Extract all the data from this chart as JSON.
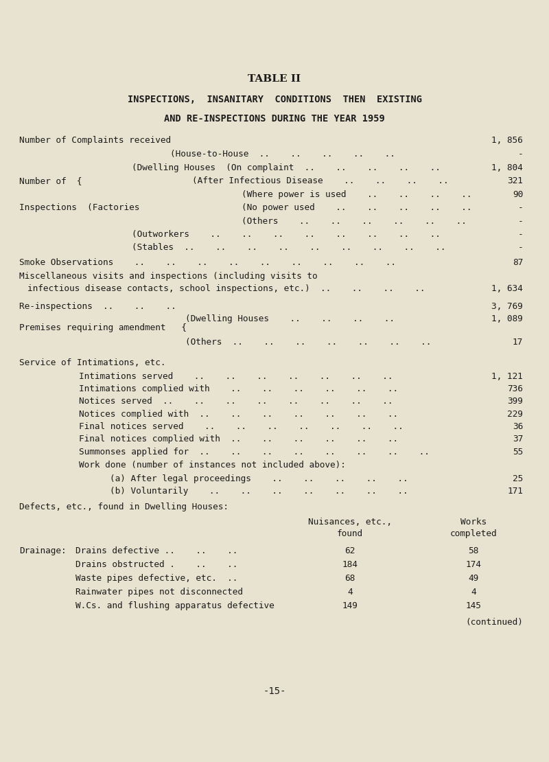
{
  "bg_color": "#e8e3d0",
  "text_color": "#1a1a1a",
  "title1": "TABLE II",
  "title2": "INSPECTIONS,  INSANITARY  CONDITIONS  THEN  EXISTING",
  "title3": "AND RE-INSPECTIONS DURING THE YEAR 1959",
  "page_number": "-15-",
  "complaints_value": "1, 856",
  "house_to_house_value": "-",
  "on_complaint_value": "1, 804",
  "after_infectious_value": "321",
  "where_power_value": "90",
  "no_power_value": "-",
  "others_factories_value": "-",
  "outworkers_value": "-",
  "stables_value": "-",
  "smoke_value": "87",
  "misc_value": "1, 634",
  "reinspections_value": "3, 769",
  "dwelling_houses_value": "1, 089",
  "others_premises_value": "17",
  "intimations_served_value": "1, 121",
  "intimations_complied_value": "736",
  "notices_served_value": "399",
  "notices_complied_value": "229",
  "final_notices_served_value": "36",
  "final_notices_complied_value": "37",
  "summonses_value": "55",
  "after_legal_value": "25",
  "voluntarily_value": "171",
  "defects_header": "Defects, etc., found in Dwelling Houses:",
  "col1_header1": "Nuisances, etc.,",
  "col1_header2": "found",
  "col2_header1": "Works",
  "col2_header2": "completed",
  "drainage_label": "Drainage:",
  "defect_rows": [
    {
      "label": "Drains defective ..    ..    ..",
      "found": "62",
      "completed": "58"
    },
    {
      "label": "Drains obstructed .    ..    ..",
      "found": "184",
      "completed": "174"
    },
    {
      "label": "Waste pipes defective, etc.  ..",
      "found": "68",
      "completed": "49"
    },
    {
      "label": "Rainwater pipes not disconnected",
      "found": "4",
      "completed": "4"
    },
    {
      "label": "W.Cs. and flushing apparatus defective",
      "found": "149",
      "completed": "145"
    }
  ],
  "continued_note": "(continued)"
}
